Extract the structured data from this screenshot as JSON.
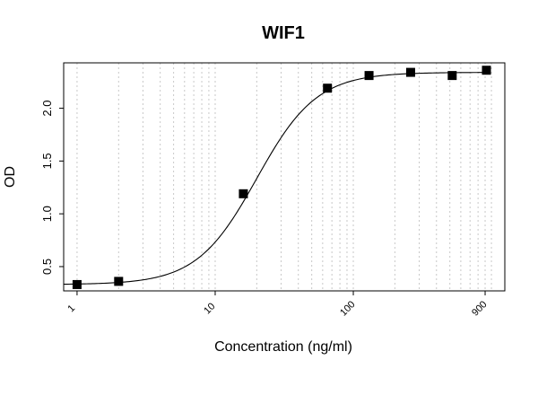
{
  "chart_data": {
    "type": "scatter",
    "title": "WIF1",
    "xlabel": "Concentration (ng/ml)",
    "ylabel": "OD",
    "x_scale": "log",
    "xlim": [
      0.8,
      1250
    ],
    "ylim": [
      0.27,
      2.43
    ],
    "x_tick_labels": [
      "1",
      "10",
      "100",
      "900"
    ],
    "y_ticks": [
      0.5,
      1.0,
      1.5,
      2.0
    ],
    "y_tick_labels": [
      "0.5",
      "1.0",
      "1.5",
      "2.0"
    ],
    "grid": "vertical-dotted",
    "points": {
      "x": [
        1,
        2,
        16,
        65,
        130,
        260,
        520,
        920
      ],
      "y": [
        0.33,
        0.36,
        1.19,
        2.19,
        2.31,
        2.34,
        2.31,
        2.36
      ]
    },
    "fit_curve": {
      "model": "4PL",
      "bottom": 0.33,
      "top": 2.34,
      "ec50": 20,
      "hill": 2.0
    },
    "colors": {
      "marker": "#000000",
      "curve": "#000000",
      "grid": "#c8c8c8",
      "frame": "#000000"
    }
  }
}
